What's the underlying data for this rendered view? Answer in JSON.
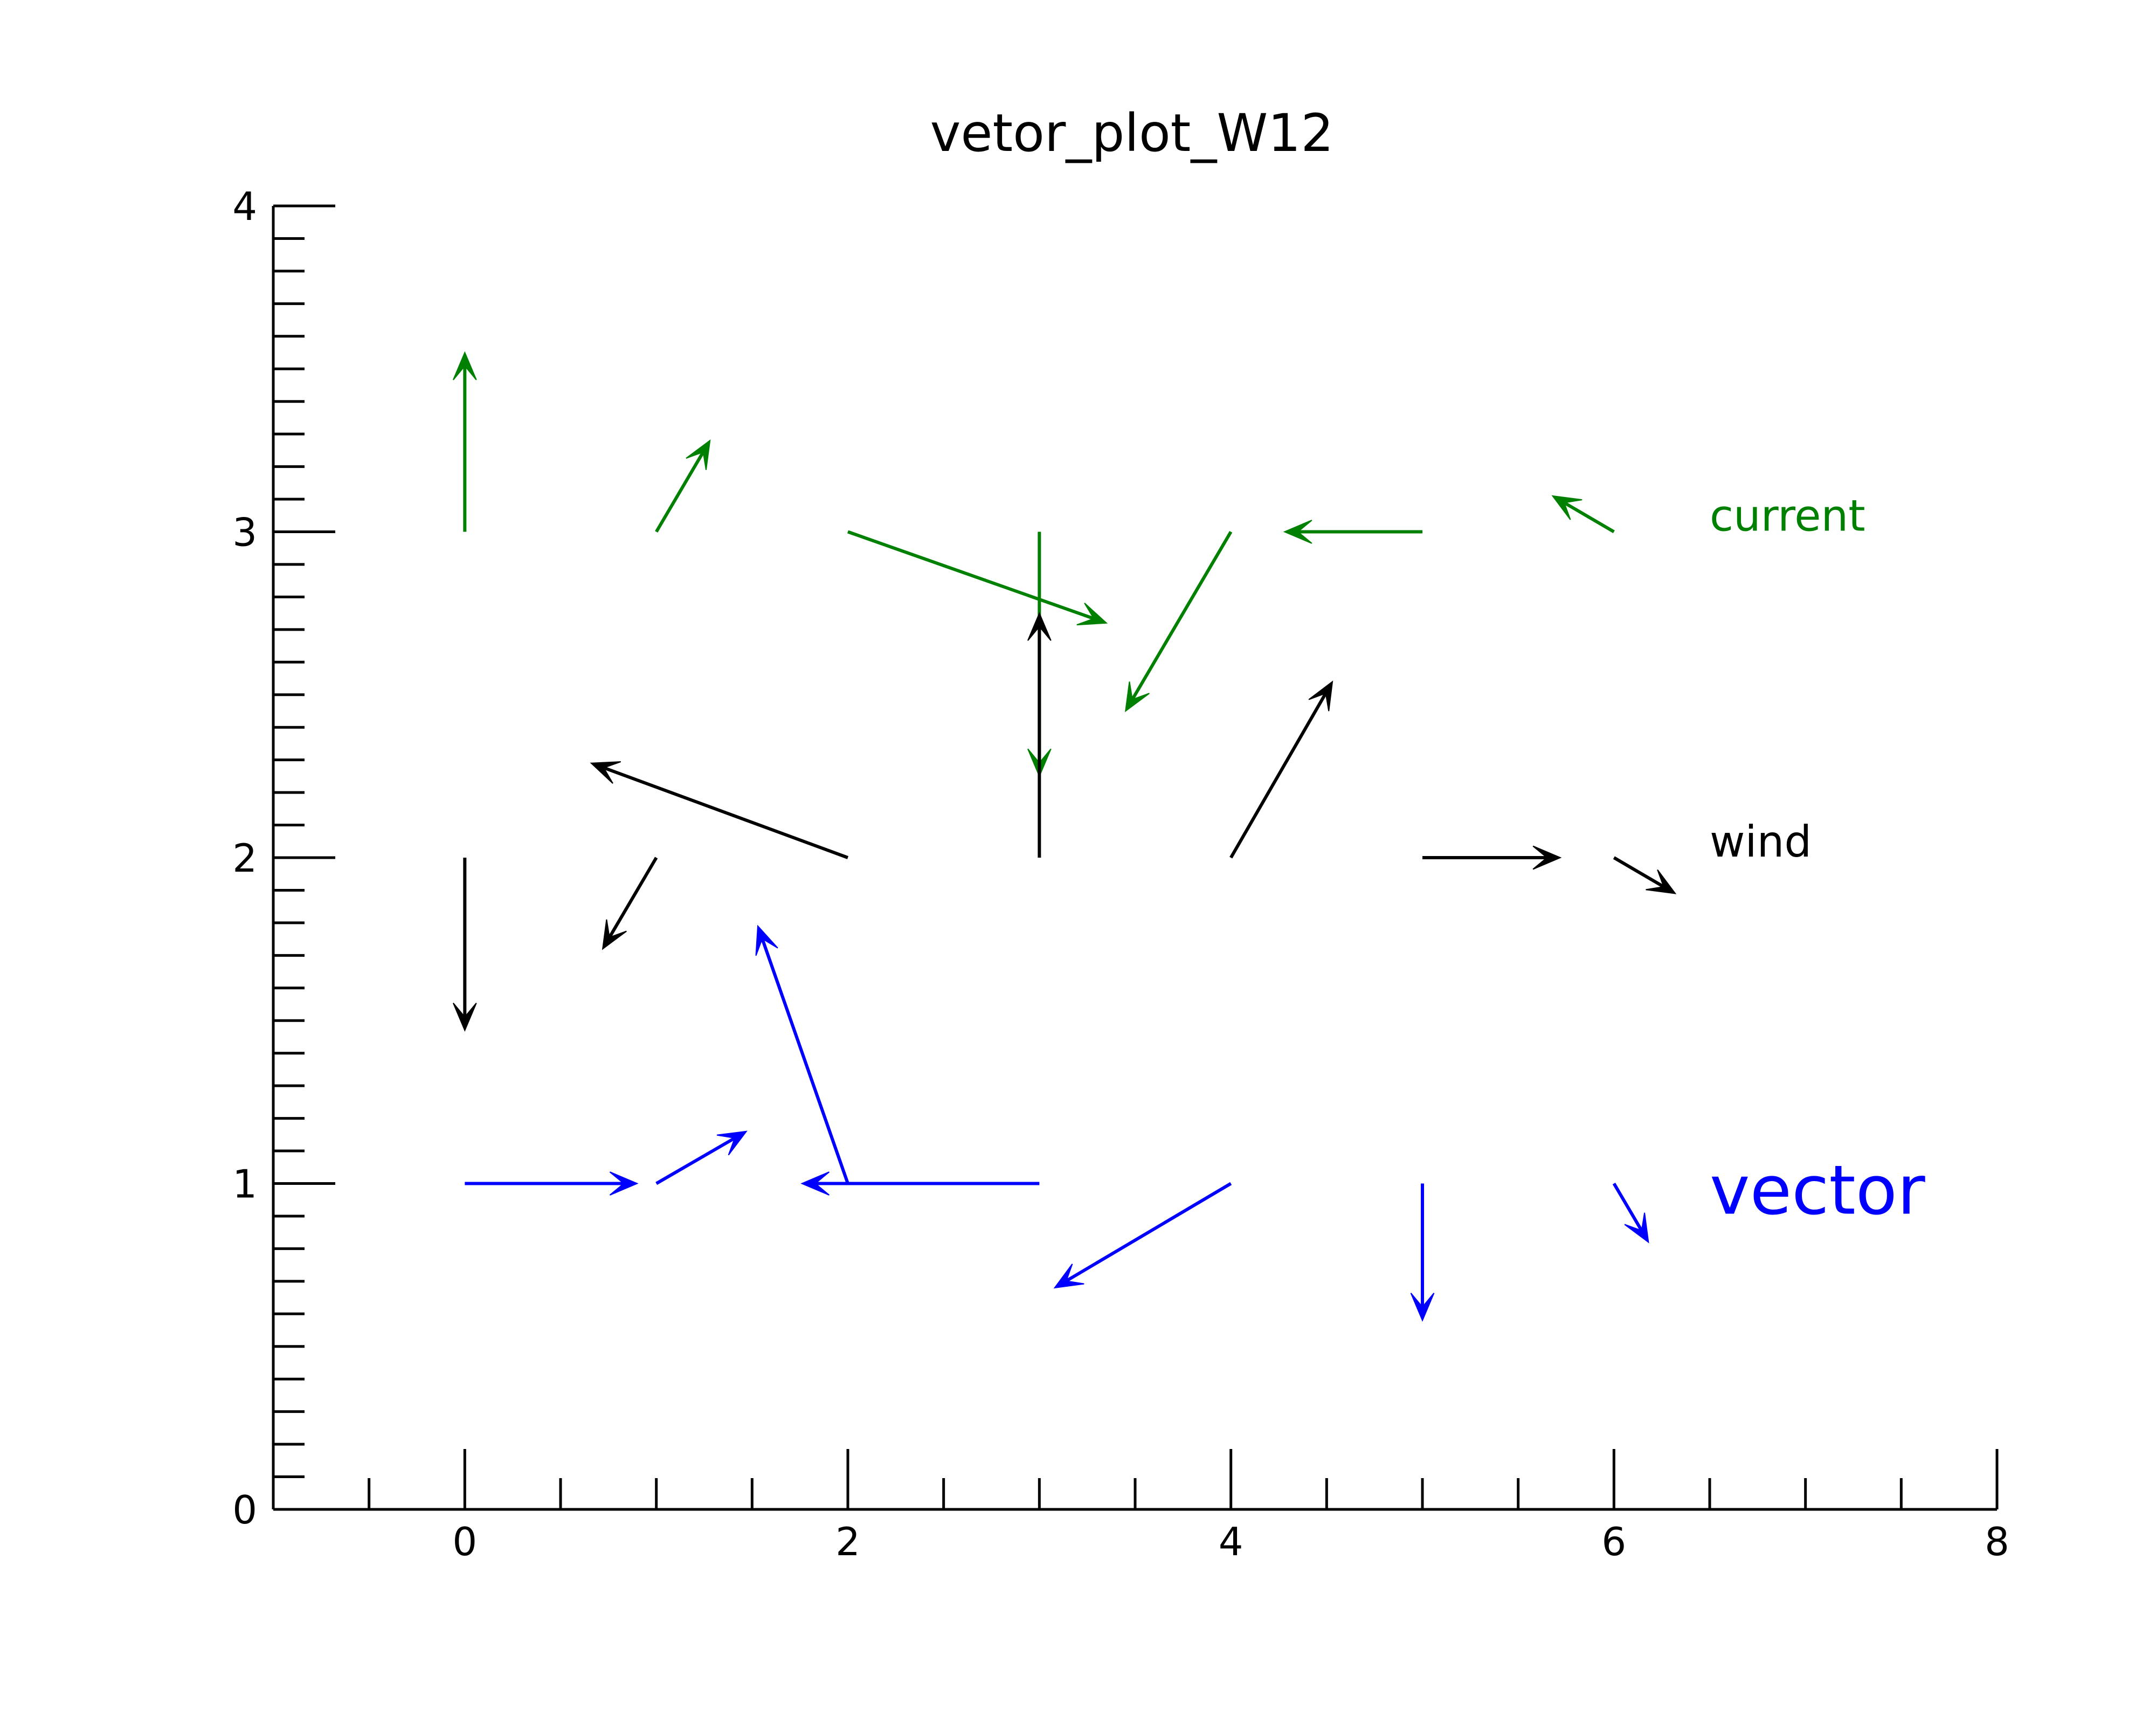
{
  "chart_data": {
    "type": "quiver",
    "title": "vetor_plot_W12",
    "xlabel": "",
    "ylabel": "",
    "xlim": [
      -1,
      8
    ],
    "ylim": [
      0,
      4
    ],
    "x_ticks": [
      0,
      2,
      4,
      6,
      8
    ],
    "y_ticks": [
      0,
      1,
      2,
      3,
      4
    ],
    "grid": false,
    "series": [
      {
        "name": "current",
        "color": "#008000",
        "label_size": "normal",
        "label_position": {
          "x": 6.5,
          "y": 3.05
        },
        "vectors": [
          {
            "x": 0,
            "y": 3,
            "u": 0.0,
            "v": 0.55
          },
          {
            "x": 1,
            "y": 3,
            "u": 0.28,
            "v": 0.28
          },
          {
            "x": 2,
            "y": 3,
            "u": 1.35,
            "v": -0.28
          },
          {
            "x": 3,
            "y": 3,
            "u": 0.0,
            "v": -0.75
          },
          {
            "x": 4,
            "y": 3,
            "u": -0.55,
            "v": -0.55
          },
          {
            "x": 5,
            "y": 3,
            "u": -0.72,
            "v": 0.0
          },
          {
            "x": 6,
            "y": 3,
            "u": -0.32,
            "v": 0.11
          }
        ]
      },
      {
        "name": "wind",
        "color": "#000000",
        "label_size": "normal",
        "label_position": {
          "x": 6.5,
          "y": 2.05
        },
        "vectors": [
          {
            "x": 0,
            "y": 2,
            "u": 0.0,
            "v": -0.53
          },
          {
            "x": 1,
            "y": 2,
            "u": -0.28,
            "v": -0.28
          },
          {
            "x": 2,
            "y": 2,
            "u": -1.34,
            "v": 0.29
          },
          {
            "x": 3,
            "y": 2,
            "u": 0.0,
            "v": 0.75
          },
          {
            "x": 4,
            "y": 2,
            "u": 0.53,
            "v": 0.54
          },
          {
            "x": 5,
            "y": 2,
            "u": 0.72,
            "v": 0.0
          },
          {
            "x": 6,
            "y": 2,
            "u": 0.32,
            "v": -0.11
          }
        ]
      },
      {
        "name": "vector",
        "color": "#0000ff",
        "label_size": "large",
        "label_position": {
          "x": 6.5,
          "y": 0.98
        },
        "vectors": [
          {
            "x": 0,
            "y": 1,
            "u": 0.9,
            "v": 0.0
          },
          {
            "x": 1,
            "y": 1,
            "u": 0.47,
            "v": 0.16
          },
          {
            "x": 2,
            "y": 1,
            "u": -0.47,
            "v": 0.79
          },
          {
            "x": 3,
            "y": 1,
            "u": -1.24,
            "v": 0.0
          },
          {
            "x": 4,
            "y": 1,
            "u": -0.92,
            "v": -0.32
          },
          {
            "x": 5,
            "y": 1,
            "u": 0.0,
            "v": -0.42
          },
          {
            "x": 6,
            "y": 1,
            "u": 0.18,
            "v": -0.18
          }
        ]
      }
    ]
  }
}
